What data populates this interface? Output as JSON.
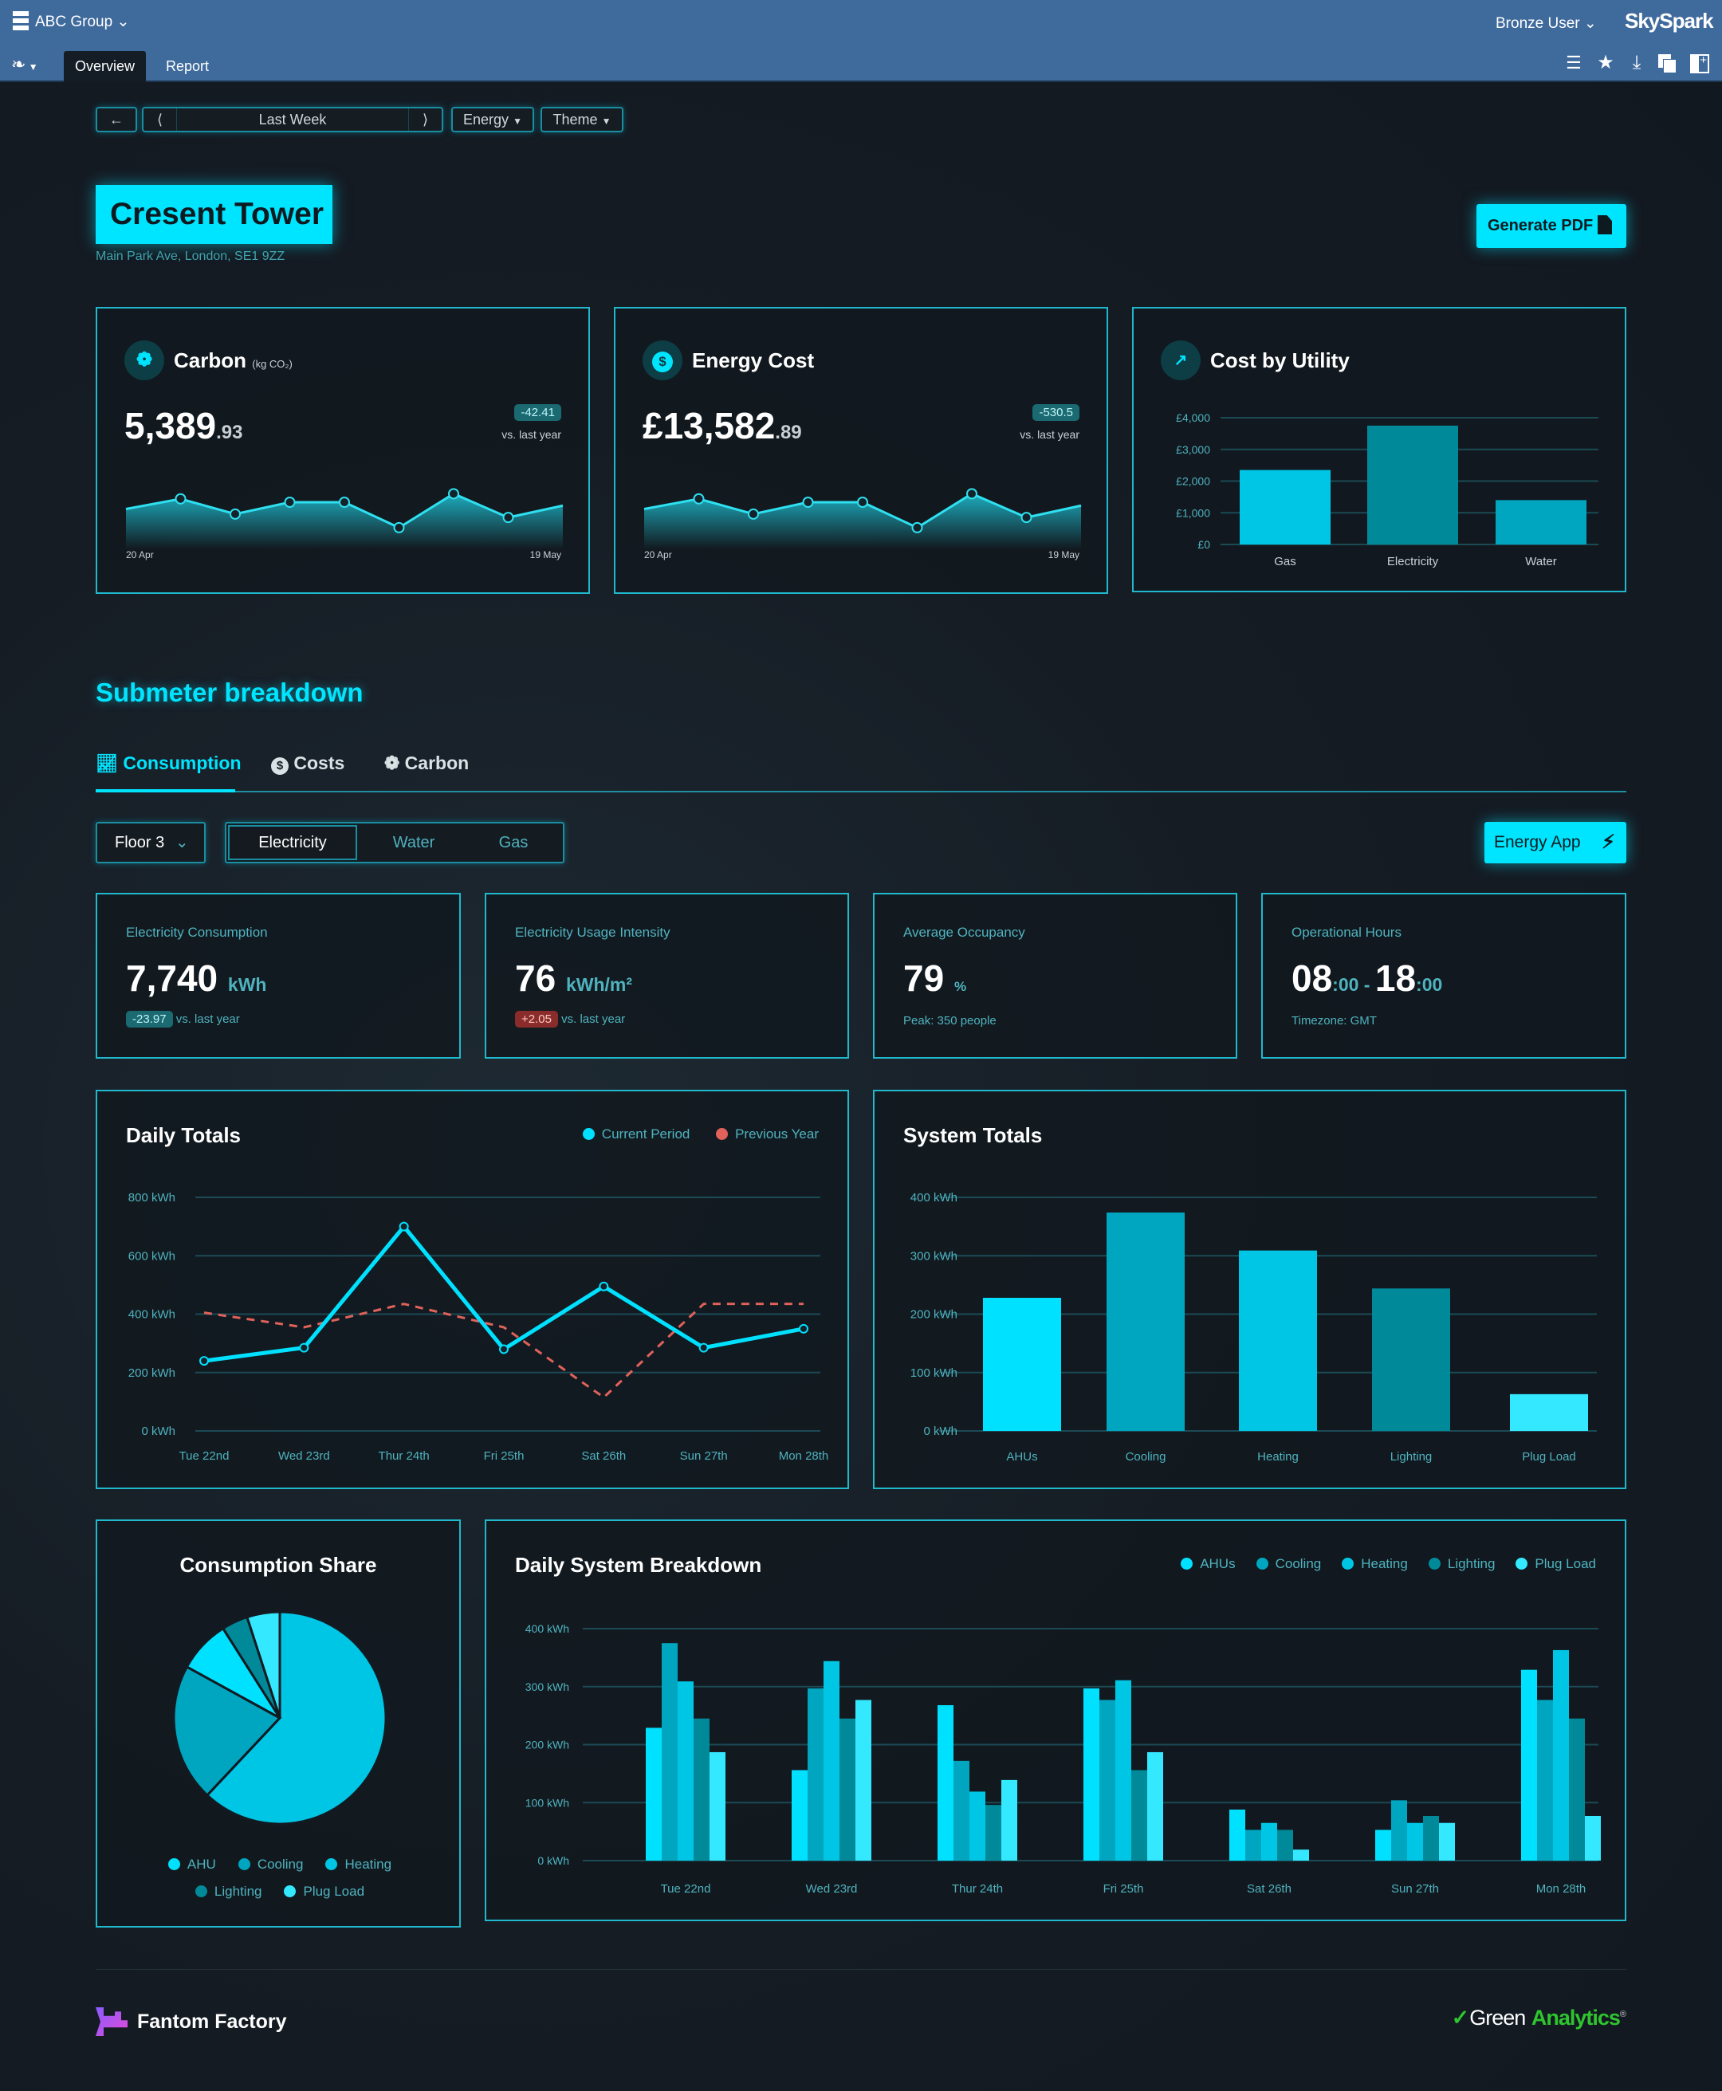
{
  "topbar": {
    "org": "ABC Group",
    "user": "Bronze User",
    "brand": "SkySpark",
    "tabs": [
      "Overview",
      "Report"
    ],
    "active_tab": "Overview",
    "icons": [
      "list-icon",
      "star-icon",
      "download-icon",
      "copy-icon",
      "split-view-icon"
    ]
  },
  "toolbar": {
    "period": "Last Week",
    "energy": "Energy",
    "theme": "Theme"
  },
  "site": {
    "name": "Cresent Tower",
    "address": "Main Park Ave, London, SE1 9ZZ",
    "generate_pdf": "Generate PDF"
  },
  "carbon": {
    "title": "Carbon",
    "unit": "(kg CO₂)",
    "value": "5,389",
    "decimals": ".93",
    "delta": "-42.41",
    "vs": "vs. last year",
    "start": "20 Apr",
    "end": "19 May",
    "points": [
      40,
      52,
      34,
      48,
      48,
      18,
      58,
      30,
      44
    ]
  },
  "energy_cost": {
    "title": "Energy Cost",
    "value": "£13,582",
    "decimals": ".89",
    "delta": "-530.5",
    "vs": "vs. last year",
    "start": "20 Apr",
    "end": "19 May",
    "points": [
      40,
      52,
      34,
      48,
      48,
      18,
      58,
      30,
      44
    ]
  },
  "submeter": {
    "heading": "Submeter breakdown",
    "tabs": [
      "Consumption",
      "Costs",
      "Carbon"
    ],
    "active_tab": "Consumption",
    "floor": "Floor 3",
    "utilities": [
      "Electricity",
      "Water",
      "Gas"
    ],
    "active_utility": "Electricity",
    "energy_app": "Energy App"
  },
  "kpis": [
    {
      "label": "Electricity Consumption",
      "value": "7,740",
      "unit": "kWh",
      "badge": "-23.97",
      "badge_type": "good",
      "sub": "vs. last year"
    },
    {
      "label": "Electricity Usage Intensity",
      "value": "76",
      "unit": "kWh/m²",
      "badge": "+2.05",
      "badge_type": "bad",
      "sub": "vs. last year"
    },
    {
      "label": "Average Occupancy",
      "value": "79",
      "unit": "%",
      "sub": "Peak: 350 people"
    },
    {
      "label": "Operational Hours",
      "start": "08",
      "start_min": ":00",
      "sep": " - ",
      "end": "18",
      "end_min": ":00",
      "sub": "Timezone: GMT"
    }
  ],
  "colors": {
    "accent": "#00e5ff",
    "border": "#1fb8cc",
    "good": "#1b6a72",
    "bad": "#8a2c2c",
    "prev": "#e0625a"
  },
  "chart_data": [
    {
      "id": "cost_by_utility",
      "type": "bar",
      "title": "Cost by Utility",
      "categories": [
        "Gas",
        "Electricity",
        "Water"
      ],
      "values": [
        2350,
        3750,
        1400
      ],
      "yticks": [
        "£0",
        "£1,000",
        "£2,000",
        "£3,000",
        "£4,000"
      ],
      "ylim": [
        0,
        4000
      ],
      "colors": [
        "#00c6e6",
        "#008a99",
        "#00a6c0"
      ],
      "grid": true
    },
    {
      "id": "daily_totals",
      "type": "line",
      "title": "Daily Totals",
      "categories": [
        "Tue 22nd",
        "Wed 23rd",
        "Thur 24th",
        "Fri 25th",
        "Sat 26th",
        "Sun 27th",
        "Mon 28th"
      ],
      "yticks": [
        "0 kWh",
        "200 kWh",
        "400 kWh",
        "600 kWh",
        "800 kWh"
      ],
      "ylim": [
        0,
        800
      ],
      "grid": true,
      "legend": "top-right",
      "series": [
        {
          "name": "Current Period",
          "values": [
            240,
            285,
            700,
            280,
            495,
            285,
            350
          ],
          "color": "#00e1ff"
        },
        {
          "name": "Previous Year",
          "values": [
            405,
            355,
            435,
            355,
            115,
            435,
            435
          ],
          "color": "#e0625a",
          "dashed": true
        }
      ]
    },
    {
      "id": "system_totals",
      "type": "bar",
      "title": "System Totals",
      "categories": [
        "AHUs",
        "Cooling",
        "Heating",
        "Lighting",
        "Plug Load"
      ],
      "values": [
        228,
        374,
        309,
        244,
        63
      ],
      "yticks": [
        "0 kWh",
        "100 kWh",
        "200 kWh",
        "300 kWh",
        "400 kWh"
      ],
      "ylim": [
        0,
        400
      ],
      "colors": [
        "#00e1ff",
        "#00a6c0",
        "#00c6e6",
        "#008a99",
        "#33e8ff"
      ],
      "grid": true
    },
    {
      "id": "consumption_share",
      "type": "pie",
      "title": "Consumption Share",
      "legend": [
        "AHU",
        "Cooling",
        "Heating",
        "Lighting",
        "Plug Load"
      ],
      "legend_colors": [
        "#00e1ff",
        "#00a6c0",
        "#00c6e6",
        "#008a99",
        "#33e8ff"
      ],
      "slices": [
        {
          "name": "Heating",
          "value": 62
        },
        {
          "name": "Cooling",
          "value": 21
        },
        {
          "name": "AHU",
          "value": 8
        },
        {
          "name": "Lighting",
          "value": 4
        },
        {
          "name": "Plug Load",
          "value": 5
        }
      ]
    },
    {
      "id": "daily_system_breakdown",
      "type": "bar",
      "title": "Daily System Breakdown",
      "categories": [
        "Tue 22nd",
        "Wed 23rd",
        "Thur 24th",
        "Fri 25th",
        "Sat 26th",
        "Sun 27th",
        "Mon 28th"
      ],
      "yticks": [
        "0 kWh",
        "100 kWh",
        "200 kWh",
        "300 kWh",
        "400 kWh"
      ],
      "ylim": [
        0,
        400
      ],
      "grid": true,
      "legend": "top-right",
      "series": [
        {
          "name": "AHUs",
          "color": "#00e1ff",
          "values": [
            229,
            156,
            268,
            297,
            88,
            53,
            329
          ]
        },
        {
          "name": "Cooling",
          "color": "#00a6c0",
          "values": [
            375,
            297,
            172,
            277,
            53,
            104,
            277
          ]
        },
        {
          "name": "Heating",
          "color": "#00c6e6",
          "values": [
            309,
            344,
            119,
            311,
            65,
            65,
            363
          ]
        },
        {
          "name": "Lighting",
          "color": "#008a99",
          "values": [
            245,
            245,
            96,
            156,
            53,
            77,
            245
          ]
        },
        {
          "name": "Plug Load",
          "color": "#33e8ff",
          "values": [
            187,
            277,
            139,
            187,
            19,
            65,
            77
          ]
        }
      ]
    }
  ],
  "footer": {
    "left_logo": "Fantom Factory",
    "right_logo_a": "Green",
    "right_logo_b": "Analytics"
  }
}
